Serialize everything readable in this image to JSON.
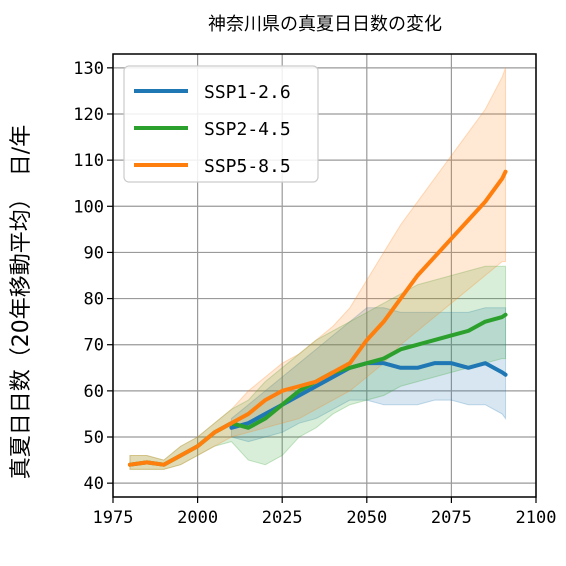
{
  "chart_data": {
    "type": "line",
    "title": "神奈川県の真夏日日数の変化",
    "ylabel": "真夏日日数（20年移動平均）　日/年",
    "xlim": [
      1975,
      2100
    ],
    "ylim": [
      37,
      133
    ],
    "xticks": [
      1975,
      2000,
      2025,
      2050,
      2075,
      2100
    ],
    "yticks": [
      40,
      50,
      60,
      70,
      80,
      90,
      100,
      110,
      120,
      130
    ],
    "grid": true,
    "legend_position": "top-left",
    "series": [
      {
        "name": "SSP1-2.6",
        "color": "#1f77b4",
        "x": [
          2010,
          2015,
          2020,
          2025,
          2030,
          2035,
          2040,
          2045,
          2050,
          2055,
          2060,
          2065,
          2070,
          2075,
          2080,
          2085,
          2090,
          2091
        ],
        "y": [
          52,
          53,
          55,
          57,
          59,
          61,
          63,
          65,
          66,
          66,
          65,
          65,
          66,
          66,
          65,
          66,
          64,
          63.5
        ],
        "lower": [
          50,
          49,
          50,
          51,
          53,
          54,
          56,
          58,
          58,
          57,
          57,
          57,
          58,
          58,
          57,
          57,
          55,
          54
        ],
        "upper": [
          54,
          57,
          60,
          63,
          66,
          69,
          72,
          75,
          78,
          78,
          77,
          77,
          77,
          77,
          77,
          78,
          78,
          78
        ]
      },
      {
        "name": "SSP2-4.5",
        "color": "#2ca02c",
        "x": [
          1980,
          1985,
          1990,
          1995,
          2000,
          2005,
          2010,
          2015,
          2020,
          2025,
          2030,
          2035,
          2040,
          2045,
          2050,
          2055,
          2060,
          2065,
          2070,
          2075,
          2080,
          2085,
          2090,
          2091
        ],
        "y": [
          44,
          44.5,
          44,
          46,
          48,
          51,
          53,
          52,
          54,
          57,
          60,
          62,
          64,
          65,
          66,
          67,
          69,
          70,
          71,
          72,
          73,
          75,
          76,
          76.5
        ],
        "lower": [
          43,
          43,
          43,
          44,
          46,
          48,
          49,
          45,
          44,
          46,
          50,
          52,
          55,
          57,
          58,
          59,
          61,
          62,
          63,
          64,
          65,
          66,
          67,
          67
        ],
        "upper": [
          46,
          46,
          45,
          48,
          50,
          53,
          56,
          58,
          62,
          65,
          68,
          71,
          73,
          75,
          77,
          79,
          81,
          83,
          84,
          85,
          86,
          87,
          87,
          87
        ]
      },
      {
        "name": "SSP5-8.5",
        "color": "#ff7f0e",
        "x": [
          1980,
          1985,
          1990,
          1995,
          2000,
          2005,
          2010,
          2015,
          2020,
          2025,
          2030,
          2035,
          2040,
          2045,
          2050,
          2055,
          2060,
          2065,
          2070,
          2075,
          2080,
          2085,
          2090,
          2091
        ],
        "y": [
          44,
          44.5,
          44,
          46,
          48,
          51,
          53,
          55,
          58,
          60,
          61,
          62,
          64,
          66,
          71,
          75,
          80,
          85,
          89,
          93,
          97,
          101,
          106,
          107.5
        ],
        "lower": [
          43,
          43,
          43,
          44,
          46,
          48,
          50,
          51,
          52,
          53,
          54,
          56,
          58,
          60,
          63,
          66,
          70,
          73,
          76,
          79,
          82,
          85,
          88,
          88
        ],
        "upper": [
          46,
          46,
          45,
          48,
          50,
          53,
          56,
          60,
          63,
          66,
          68,
          71,
          74,
          78,
          84,
          90,
          96,
          101,
          106,
          111,
          116,
          121,
          128,
          130
        ]
      }
    ]
  }
}
